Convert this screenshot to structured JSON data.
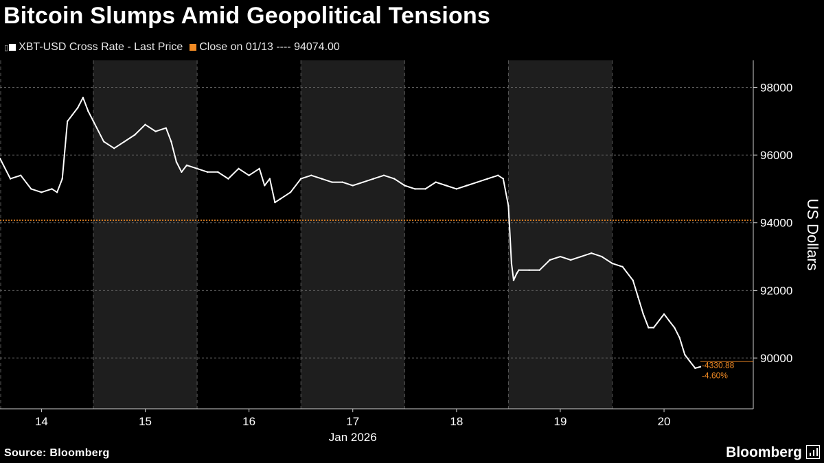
{
  "title": "Bitcoin Slumps Amid Geopolitical Tensions",
  "legend": {
    "series_label": "XBT-USD Cross Rate - Last Price",
    "close_label": "Close on 01/13 ---- 94074.00"
  },
  "source": "Source: Bloomberg",
  "brand": "Bloomberg",
  "colors": {
    "price": "#ffffff",
    "close": "#f08a24",
    "shade": "#1e1e1e",
    "grid": "#5a5a5a"
  },
  "chart_data": {
    "type": "line",
    "ylabel": "US Dollars",
    "xlabel": "Jan 2026",
    "ylim": [
      88500,
      98800
    ],
    "xlim": [
      13.6,
      20.86
    ],
    "yticks": [
      90000,
      92000,
      94000,
      96000,
      98000
    ],
    "x_tick_labels": [
      "14",
      "15",
      "16",
      "17",
      "18",
      "19",
      "20"
    ],
    "x_tick_values": [
      14,
      15,
      16,
      17,
      18,
      19,
      20
    ],
    "shaded_days": [
      [
        14.5,
        15.5
      ],
      [
        16.5,
        17.5
      ],
      [
        18.5,
        19.5
      ]
    ],
    "grid": true,
    "reference_line": {
      "label": "Close on 01/13",
      "value": 94074.0
    },
    "annotations": {
      "change": "-4330.88",
      "change_pct": "-4.60%"
    },
    "series": [
      {
        "name": "XBT-USD Cross Rate - Last Price",
        "x": [
          13.6,
          13.7,
          13.8,
          13.9,
          14.0,
          14.1,
          14.15,
          14.2,
          14.25,
          14.3,
          14.35,
          14.4,
          14.45,
          14.5,
          14.6,
          14.7,
          14.8,
          14.9,
          15.0,
          15.1,
          15.2,
          15.25,
          15.3,
          15.35,
          15.4,
          15.5,
          15.6,
          15.7,
          15.8,
          15.9,
          16.0,
          16.1,
          16.15,
          16.2,
          16.25,
          16.3,
          16.4,
          16.5,
          16.6,
          16.7,
          16.8,
          16.9,
          17.0,
          17.1,
          17.2,
          17.3,
          17.4,
          17.5,
          17.6,
          17.7,
          17.8,
          17.9,
          18.0,
          18.1,
          18.2,
          18.3,
          18.4,
          18.45,
          18.5,
          18.53,
          18.55,
          18.58,
          18.6,
          18.7,
          18.8,
          18.9,
          19.0,
          19.1,
          19.2,
          19.3,
          19.4,
          19.5,
          19.6,
          19.7,
          19.75,
          19.8,
          19.85,
          19.9,
          20.0,
          20.05,
          20.1,
          20.15,
          20.2,
          20.25,
          20.3,
          20.35
        ],
        "y": [
          95900,
          95300,
          95400,
          95000,
          94900,
          95000,
          94900,
          95300,
          97000,
          97200,
          97400,
          97700,
          97300,
          97000,
          96400,
          96200,
          96400,
          96600,
          96900,
          96700,
          96800,
          96400,
          95800,
          95500,
          95700,
          95600,
          95500,
          95500,
          95300,
          95600,
          95400,
          95600,
          95100,
          95300,
          94600,
          94700,
          94900,
          95300,
          95400,
          95300,
          95200,
          95200,
          95100,
          95200,
          95300,
          95400,
          95300,
          95100,
          95000,
          95000,
          95200,
          95100,
          95000,
          95100,
          95200,
          95300,
          95400,
          95300,
          94500,
          92800,
          92300,
          92500,
          92600,
          92600,
          92600,
          92900,
          93000,
          92900,
          93000,
          93100,
          93000,
          92800,
          92700,
          92300,
          91800,
          91300,
          90900,
          90900,
          91300,
          91100,
          90900,
          90600,
          90100,
          89900,
          89700,
          89743
        ]
      }
    ]
  }
}
